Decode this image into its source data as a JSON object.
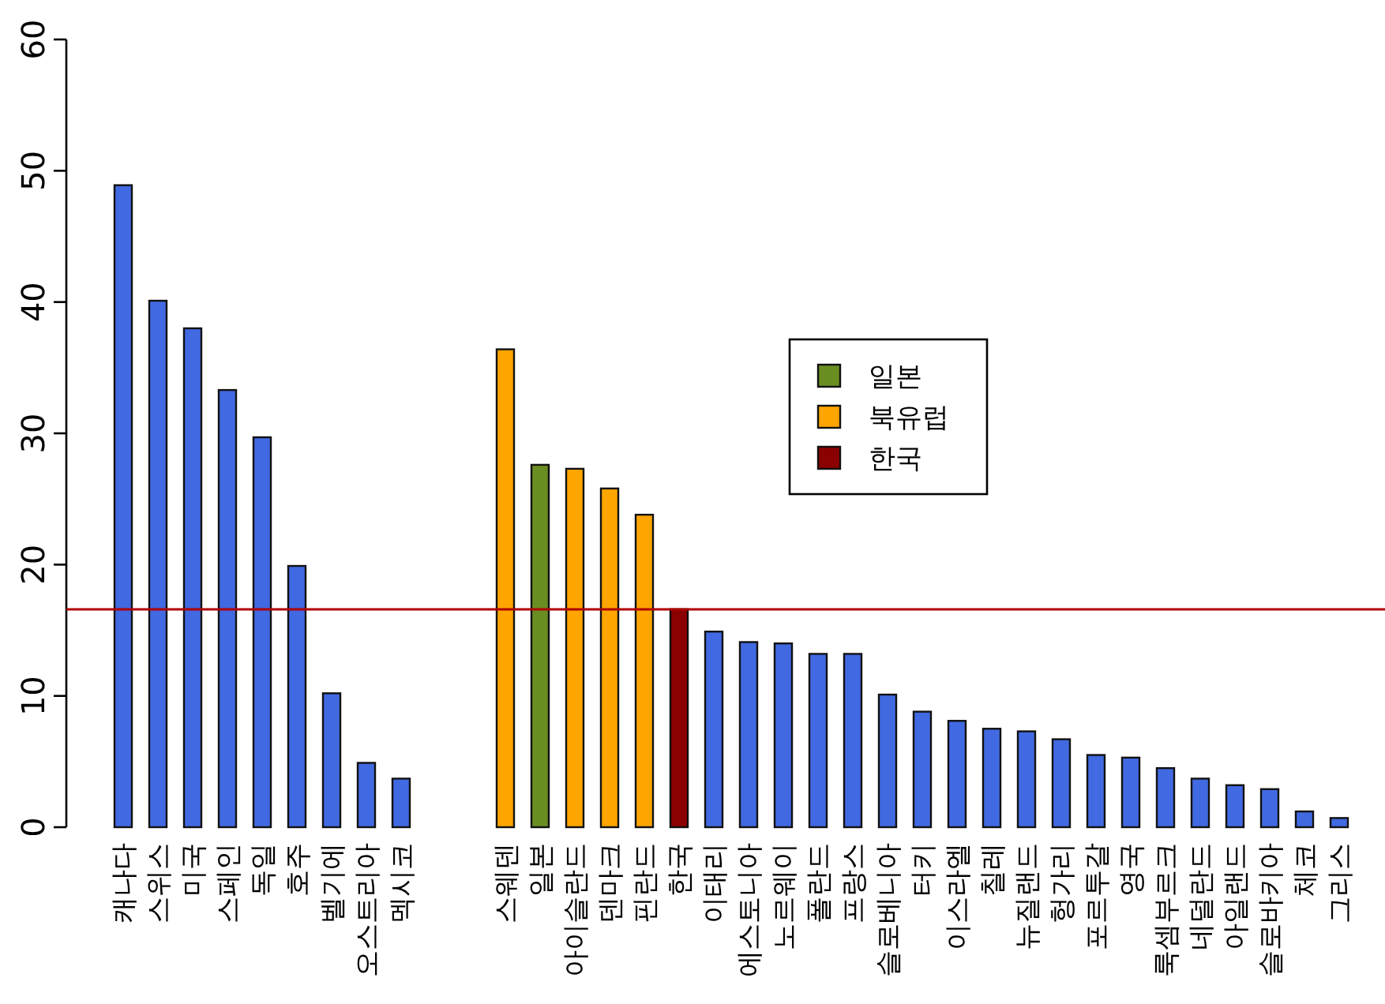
{
  "chart_data": {
    "type": "bar",
    "categories": [
      "캐나다",
      "스위스",
      "미국",
      "스페인",
      "독일",
      "호주",
      "벨기에",
      "오스트리아",
      "멕시코",
      null,
      null,
      "스웨덴",
      "일본",
      "아이슬란드",
      "덴마크",
      "핀란드",
      "한국",
      "이태리",
      "에스토니아",
      "노르웨이",
      "폴란드",
      "프랑스",
      "슬로베니아",
      "터키",
      "이스라엘",
      "칠레",
      "뉴질랜드",
      "헝가리",
      "포르투갈",
      "영국",
      "룩셈부르크",
      "네덜란드",
      "아일랜드",
      "슬로바키아",
      "체코",
      "그리스"
    ],
    "series": [
      {
        "color": "#4169e1",
        "values": [
          48.9,
          40.1,
          38.0,
          33.3,
          29.7,
          19.9,
          10.2,
          4.9,
          3.7,
          null,
          null,
          null,
          null,
          null,
          null,
          null,
          null,
          14.9,
          14.1,
          14.0,
          13.2,
          13.2,
          10.1,
          8.8,
          8.1,
          7.5,
          7.3,
          6.7,
          5.5,
          5.3,
          4.5,
          3.7,
          3.2,
          2.9,
          1.2,
          0.7
        ]
      },
      {
        "name": "일본",
        "color": "#6b8e23",
        "values": [
          null,
          null,
          null,
          null,
          null,
          null,
          null,
          null,
          null,
          null,
          null,
          null,
          27.6,
          null,
          null,
          null,
          null,
          null,
          null,
          null,
          null,
          null,
          null,
          null,
          null,
          null,
          null,
          null,
          null,
          null,
          null,
          null,
          null,
          null,
          null,
          null
        ]
      },
      {
        "name": "북유럽",
        "color": "#ffa500",
        "values": [
          null,
          null,
          null,
          null,
          null,
          null,
          null,
          null,
          null,
          null,
          null,
          36.4,
          null,
          27.3,
          25.8,
          23.8,
          null,
          null,
          null,
          null,
          null,
          null,
          null,
          null,
          null,
          null,
          null,
          null,
          null,
          null,
          null,
          null,
          null,
          null,
          null,
          null
        ]
      },
      {
        "name": "한국",
        "color": "#8b0000",
        "values": [
          null,
          null,
          null,
          null,
          null,
          null,
          null,
          null,
          null,
          null,
          null,
          null,
          null,
          null,
          null,
          null,
          16.6,
          null,
          null,
          null,
          null,
          null,
          null,
          null,
          null,
          null,
          null,
          null,
          null,
          null,
          null,
          null,
          null,
          null,
          null,
          null
        ]
      }
    ],
    "ylim": [
      0,
      60
    ],
    "yticks": [
      0,
      10,
      20,
      30,
      40,
      50,
      60
    ],
    "ref_lines": [
      {
        "axis": "y",
        "value": 16.6,
        "color": "#b00000"
      }
    ],
    "legend": "top right"
  }
}
